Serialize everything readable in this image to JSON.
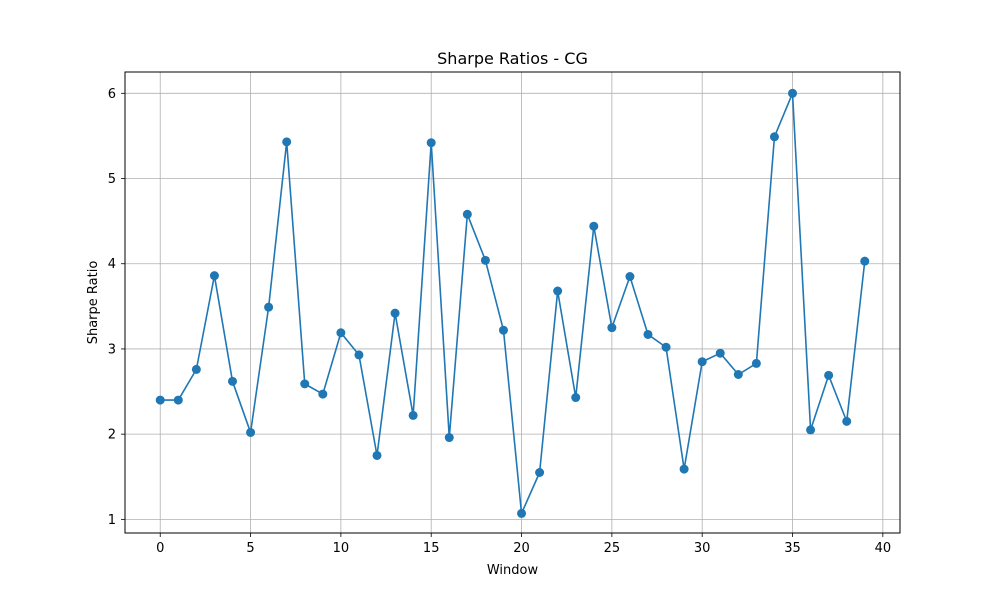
{
  "chart_data": {
    "type": "line",
    "title": "Sharpe Ratios - CG",
    "xlabel": "Window",
    "ylabel": "Sharpe Ratio",
    "xlim": [
      -1.95,
      40.95
    ],
    "ylim": [
      0.84,
      6.25
    ],
    "xticks": [
      0,
      5,
      10,
      15,
      20,
      25,
      30,
      35,
      40
    ],
    "yticks": [
      1,
      2,
      3,
      4,
      5,
      6
    ],
    "grid": true,
    "marker": "circle",
    "color": "#1f77b4",
    "x": [
      0,
      1,
      2,
      3,
      4,
      5,
      6,
      7,
      8,
      9,
      10,
      11,
      12,
      13,
      14,
      15,
      16,
      17,
      18,
      19,
      20,
      21,
      22,
      23,
      24,
      25,
      26,
      27,
      28,
      29,
      30,
      31,
      32,
      33,
      34,
      35,
      36,
      37,
      38,
      39
    ],
    "series": [
      {
        "values": [
          2.4,
          2.4,
          2.76,
          3.86,
          2.62,
          2.02,
          3.49,
          5.43,
          2.59,
          2.47,
          3.19,
          2.93,
          1.75,
          3.42,
          2.22,
          5.42,
          1.96,
          4.58,
          4.04,
          3.22,
          1.07,
          1.55,
          3.68,
          2.43,
          4.44,
          3.25,
          3.85,
          3.17,
          3.02,
          1.59,
          2.85,
          2.95,
          2.7,
          2.83,
          5.49,
          6.0,
          2.05,
          2.69,
          2.15,
          4.03
        ]
      }
    ]
  }
}
